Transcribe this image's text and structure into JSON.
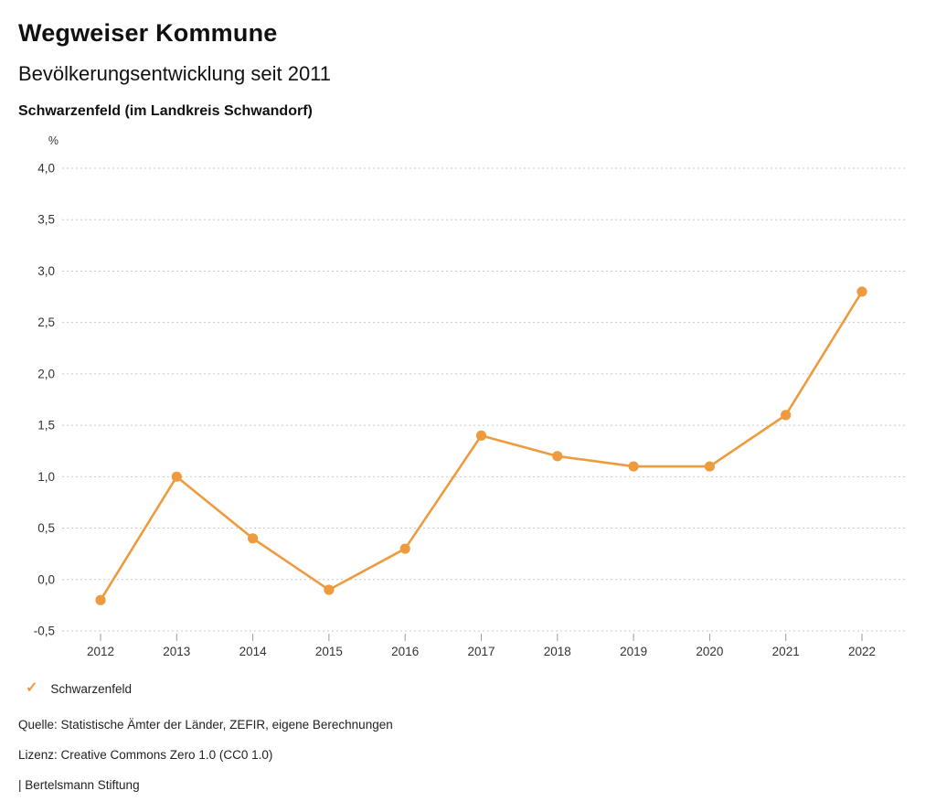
{
  "header": {
    "title": "Wegweiser Kommune",
    "subtitle": "Bevölkerungsentwicklung seit 2011",
    "location": "Schwarzenfeld (im Landkreis Schwandorf)"
  },
  "chart_data": {
    "type": "line",
    "title": "Bevölkerungsentwicklung seit 2011",
    "unit_label": "%",
    "categories": [
      "2012",
      "2013",
      "2014",
      "2015",
      "2016",
      "2017",
      "2018",
      "2019",
      "2020",
      "2021",
      "2022"
    ],
    "series": [
      {
        "name": "Schwarzenfeld",
        "values": [
          -0.2,
          1.0,
          0.4,
          -0.1,
          0.3,
          1.4,
          1.2,
          1.1,
          1.1,
          1.6,
          2.8
        ]
      }
    ],
    "ylim": [
      -0.5,
      4.0
    ],
    "ytick_step": 0.5,
    "decimal_separator": ",",
    "grid": "horizontal-dashed",
    "legend_position": "bottom-left",
    "colors": {
      "line": "#EE9B3F",
      "grid": "#c9c9c9",
      "tick": "#9a9a9a",
      "axis_text": "#333333"
    }
  },
  "legend": {
    "marker_glyph": "✓",
    "items": [
      {
        "label": "Schwarzenfeld",
        "color": "#EE9B3F"
      }
    ]
  },
  "footer": {
    "source": "Quelle: Statistische Ämter der Länder, ZEFIR, eigene Berechnungen",
    "license": "Lizenz: Creative Commons Zero 1.0 (CC0 1.0)",
    "attribution": "| Bertelsmann Stiftung"
  }
}
